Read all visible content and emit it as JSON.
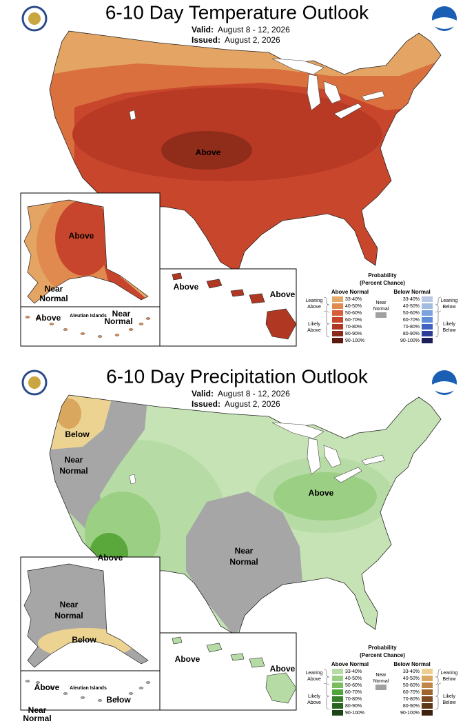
{
  "maps": [
    {
      "title": "6-10 Day Temperature Outlook",
      "valid_label": "Valid:",
      "valid": "August 8 - 12, 2026",
      "issued_label": "Issued:",
      "issued": "August 2, 2026",
      "labels": [
        "Above",
        "Above",
        "Near",
        "Normal",
        "Above",
        "Aleutian Islands",
        "Near",
        "Normal",
        "Above",
        "Above"
      ],
      "legend": {
        "title": "Probability",
        "subtitle": "(Percent Chance)",
        "above_header": "Above Normal",
        "below_header": "Below Normal",
        "leaning_above": [
          "Leaning",
          "Above"
        ],
        "likely_above": [
          "Likely",
          "Above"
        ],
        "near": [
          "Near",
          "Normal"
        ],
        "leaning_below": [
          "Leaning",
          "Below"
        ],
        "likely_below": [
          "Likely",
          "Below"
        ],
        "above": [
          {
            "label": "33-40%",
            "color": "#e5a869"
          },
          {
            "label": "40-50%",
            "color": "#e08a50"
          },
          {
            "label": "50-60%",
            "color": "#d6603a"
          },
          {
            "label": "60-70%",
            "color": "#c8452d"
          },
          {
            "label": "70-80%",
            "color": "#b03823"
          },
          {
            "label": "80-90%",
            "color": "#8b2a1a"
          },
          {
            "label": "90-100%",
            "color": "#5c1a0e"
          }
        ],
        "below": [
          {
            "label": "33-40%",
            "color": "#b9c8e3"
          },
          {
            "label": "40-50%",
            "color": "#a3bbe0"
          },
          {
            "label": "50-60%",
            "color": "#7aa3df"
          },
          {
            "label": "60-70%",
            "color": "#5e8fd8"
          },
          {
            "label": "70-80%",
            "color": "#3e63c0"
          },
          {
            "label": "80-90%",
            "color": "#2b3d96"
          },
          {
            "label": "90-100%",
            "color": "#1c1f5a"
          }
        ]
      }
    },
    {
      "title": "6-10 Day Precipitation Outlook",
      "valid_label": "Valid:",
      "valid": "August 8 - 12, 2026",
      "issued_label": "Issued:",
      "issued": "August 2, 2026",
      "labels": [
        "Below",
        "Near",
        "Normal",
        "Above",
        "Above",
        "Near",
        "Normal",
        "Near",
        "Normal",
        "Below",
        "Above",
        "Above",
        "Above",
        "Aleutian Islands",
        "Below",
        "Near",
        "Normal"
      ],
      "legend": {
        "title": "Probability",
        "subtitle": "(Percent Chance)",
        "above_header": "Above Normal",
        "below_header": "Below Normal",
        "leaning_above": [
          "Leaning",
          "Above"
        ],
        "likely_above": [
          "Likely",
          "Above"
        ],
        "near": [
          "Near",
          "Normal"
        ],
        "leaning_below": [
          "Leaning",
          "Below"
        ],
        "likely_below": [
          "Likely",
          "Below"
        ],
        "above": [
          {
            "label": "33-40%",
            "color": "#b7dba5"
          },
          {
            "label": "40-50%",
            "color": "#9bcf84"
          },
          {
            "label": "50-60%",
            "color": "#7bbd5e"
          },
          {
            "label": "60-70%",
            "color": "#50a638"
          },
          {
            "label": "70-80%",
            "color": "#39802a"
          },
          {
            "label": "80-90%",
            "color": "#2a6320"
          },
          {
            "label": "90-100%",
            "color": "#1c4516"
          }
        ],
        "below": [
          {
            "label": "33-40%",
            "color": "#eecf93"
          },
          {
            "label": "40-50%",
            "color": "#d9a862"
          },
          {
            "label": "50-60%",
            "color": "#c28748"
          },
          {
            "label": "60-70%",
            "color": "#a0642f"
          },
          {
            "label": "70-80%",
            "color": "#7d4a24"
          },
          {
            "label": "80-90%",
            "color": "#5e3618"
          },
          {
            "label": "90-100%",
            "color": "#3f220e"
          }
        ]
      }
    }
  ]
}
